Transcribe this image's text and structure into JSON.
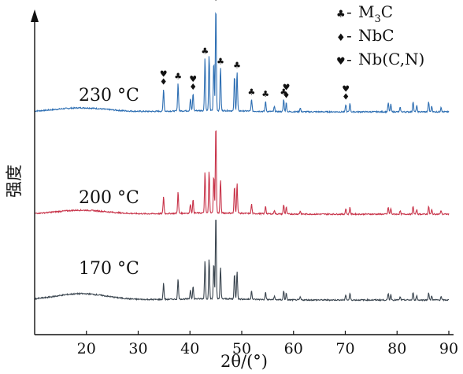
{
  "chart_data": {
    "type": "line",
    "xlabel": "2θ/(°)",
    "ylabel": "强度",
    "xlim": [
      10,
      90
    ],
    "xticks": [
      20,
      30,
      40,
      50,
      60,
      70,
      80,
      90
    ],
    "grid": false,
    "legend_position": "top-right",
    "legend": [
      {
        "symbol": "♣",
        "label": "M3C",
        "label_main": "M",
        "label_sub": "3",
        "label_tail": "C",
        "sep": "-"
      },
      {
        "symbol": "♦",
        "label": "NbC",
        "sep": "-"
      },
      {
        "symbol": "♥",
        "label": "Nb(C,N)",
        "sep": "-"
      }
    ],
    "series": [
      {
        "name": "230 °C",
        "color": "#2e6fb3"
      },
      {
        "name": "200 °C",
        "color": "#c8344a"
      },
      {
        "name": "170 °C",
        "color": "#3a454f"
      }
    ],
    "peaks": [
      {
        "x": 34.9,
        "h": 0.55,
        "phase": [
          "♥",
          "♦"
        ]
      },
      {
        "x": 37.7,
        "h": 0.68,
        "phase": [
          "♣"
        ]
      },
      {
        "x": 40.1,
        "h": 0.3,
        "phase": []
      },
      {
        "x": 40.6,
        "h": 0.42,
        "phase": [
          "♥",
          "♦"
        ]
      },
      {
        "x": 42.9,
        "h": 1.3,
        "phase": [
          "♣"
        ]
      },
      {
        "x": 43.7,
        "h": 1.35,
        "phase": []
      },
      {
        "x": 44.6,
        "h": 1.2,
        "phase": []
      },
      {
        "x": 45.0,
        "h": 2.6,
        "phase": [
          "♣"
        ]
      },
      {
        "x": 45.9,
        "h": 1.05,
        "phase": [
          "♣"
        ]
      },
      {
        "x": 48.6,
        "h": 0.85,
        "phase": []
      },
      {
        "x": 49.1,
        "h": 0.95,
        "phase": [
          "♣"
        ]
      },
      {
        "x": 51.9,
        "h": 0.3,
        "phase": [
          "♣"
        ]
      },
      {
        "x": 54.6,
        "h": 0.25,
        "phase": [
          "♣"
        ]
      },
      {
        "x": 56.3,
        "h": 0.12,
        "phase": []
      },
      {
        "x": 58.1,
        "h": 0.3,
        "phase": [
          "♣"
        ]
      },
      {
        "x": 58.6,
        "h": 0.22,
        "phase": [
          "♥",
          "♦"
        ]
      },
      {
        "x": 61.3,
        "h": 0.1,
        "phase": []
      },
      {
        "x": 70.1,
        "h": 0.18,
        "phase": [
          "♥",
          "♦"
        ]
      },
      {
        "x": 70.9,
        "h": 0.22,
        "phase": []
      },
      {
        "x": 78.3,
        "h": 0.22,
        "phase": []
      },
      {
        "x": 78.8,
        "h": 0.18,
        "phase": []
      },
      {
        "x": 80.6,
        "h": 0.1,
        "phase": []
      },
      {
        "x": 83.1,
        "h": 0.26,
        "phase": []
      },
      {
        "x": 83.8,
        "h": 0.15,
        "phase": []
      },
      {
        "x": 86.1,
        "h": 0.24,
        "phase": []
      },
      {
        "x": 86.7,
        "h": 0.14,
        "phase": []
      },
      {
        "x": 88.5,
        "h": 0.12,
        "phase": []
      }
    ]
  }
}
